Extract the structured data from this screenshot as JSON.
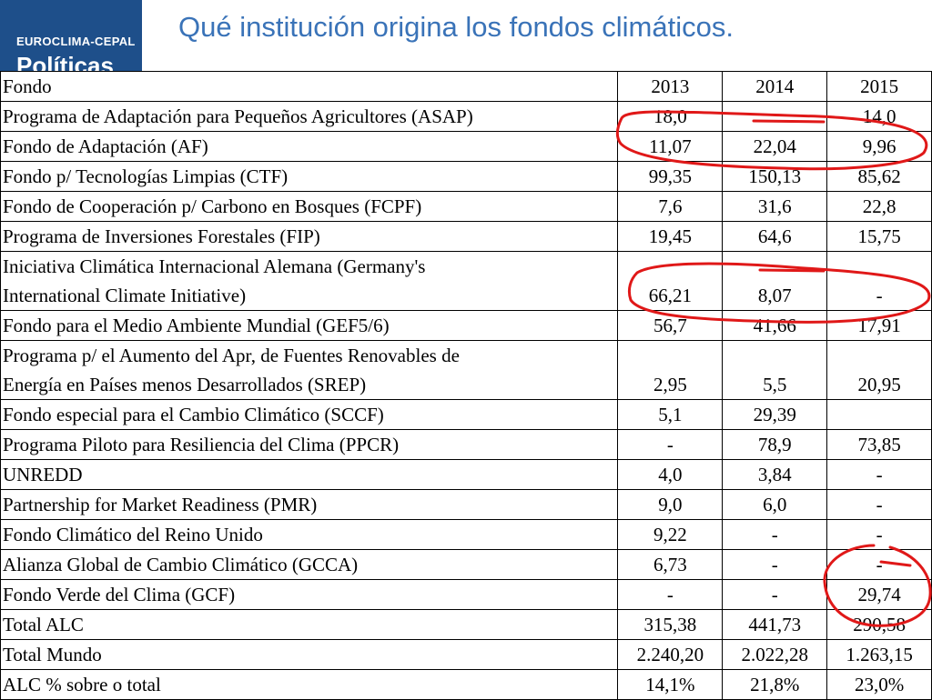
{
  "slide": {
    "title": "Qué institución origina los fondos climáticos.",
    "brand_name": "EUROCLIMA-CEPAL",
    "brand_subtitle": "Políticas"
  },
  "table": {
    "header": {
      "name": "Fondo",
      "y2013": "2013",
      "y2014": "2014",
      "y2015": "2015"
    },
    "rows": [
      {
        "name": "Programa de Adaptación para Pequeños Agricultores (ASAP)",
        "y2013": "18,0",
        "y2014": "",
        "y2015": "14,0"
      },
      {
        "name": "Fondo de Adaptación (AF)",
        "y2013": "11,07",
        "y2014": "22,04",
        "y2015": "9,96"
      },
      {
        "name": "Fondo p/ Tecnologías Limpias  (CTF)",
        "y2013": "99,35",
        "y2014": "150,13",
        "y2015": "85,62"
      },
      {
        "name": "Fondo de Cooperación p/ Carbono en Bosques (FCPF)",
        "y2013": "7,6",
        "y2014": "31,6",
        "y2015": "22,8"
      },
      {
        "name": "Programa de Inversiones Forestales (FIP)",
        "y2013": "19,45",
        "y2014": "64,6",
        "y2015": "15,75"
      },
      {
        "name_line1": "Iniciativa  Climática Internacional Alemana (Germany's",
        "name_line2": "International Climate Initiative)",
        "y2013": "66,21",
        "y2014": "8,07",
        "y2015": "-"
      },
      {
        "name": "Fondo para el Medio Ambiente Mundial (GEF5/6)",
        "y2013": "56,7",
        "y2014": "41,66",
        "y2015": "17,91"
      },
      {
        "name_line1": "Programa p/ el Aumento del Apr, de Fuentes Renovables  de",
        "name_line2": "Energía en Países menos Desarrollados (SREP)",
        "y2013": "2,95",
        "y2014": "5,5",
        "y2015": "20,95"
      },
      {
        "name": "Fondo especial para el Cambio Climático (SCCF)",
        "y2013": "5,1",
        "y2014": "29,39",
        "y2015": ""
      },
      {
        "name": "Programa Piloto para Resiliencia del Clima (PPCR)",
        "y2013": "-",
        "y2014": "78,9",
        "y2015": "73,85"
      },
      {
        "name": "UNREDD",
        "y2013": "4,0",
        "y2014": "3,84",
        "y2015": "-"
      },
      {
        "name": "Partnership for Market Readiness (PMR)",
        "y2013": "9,0",
        "y2014": "6,0",
        "y2015": "-"
      },
      {
        "name": "Fondo Climático del Reino Unido",
        "y2013": "9,22",
        "y2014": "-",
        "y2015": "-"
      },
      {
        "name": "Alianza Global de Cambio Climático (GCCA)",
        "y2013": "6,73",
        "y2014": "-",
        "y2015": "-"
      },
      {
        "name": "Fondo Verde del Clima (GCF)",
        "y2013": "-",
        "y2014": "-",
        "y2015": "29,74"
      },
      {
        "name": "Total ALC",
        "y2013": "315,38",
        "y2014": "441,73",
        "y2015": "290,58"
      },
      {
        "name": "Total Mundo",
        "y2013": "2.240,20",
        "y2014": "2.022,28",
        "y2015": "1.263,15"
      },
      {
        "name": "ALC % sobre o total",
        "y2013": "14,1%",
        "y2014": "21,8%",
        "y2015": "23,0%"
      }
    ]
  },
  "colors": {
    "brand_blue": "#1e4f8a",
    "title_blue": "#3a73b8",
    "ink_red": "#e01818"
  }
}
